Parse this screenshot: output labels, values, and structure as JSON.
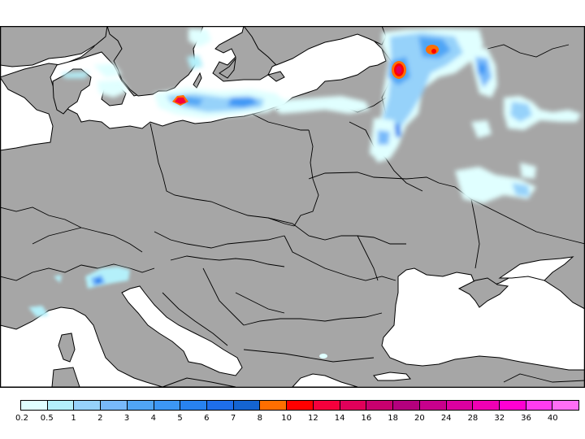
{
  "map": {
    "type": "precipitation-map",
    "region": "Central and Eastern Europe",
    "land_color": "#a6a6a6",
    "water_color": "#ffffff",
    "border_color": "#000000",
    "visible_water_bodies": [
      "North Sea",
      "Baltic Sea",
      "Gulf of Finland",
      "Adriatic Sea",
      "Tyrrhenian Sea",
      "Black Sea",
      "Sea of Azov",
      "Aegean Sea"
    ],
    "precip_features": [
      {
        "location": "Southern Baltic (off southern Sweden)",
        "max_class": "10-12"
      },
      {
        "location": "Baltic Sea band east to Lithuania coast",
        "max_class": "5-6"
      },
      {
        "location": "Western Russia near Pskov",
        "max_class": "12-14"
      },
      {
        "location": "Near Lake Ilmen",
        "max_class": "8-10"
      },
      {
        "location": "Western Russia / Belarus / Ukraine-Russia border",
        "max_class": "4-5"
      },
      {
        "location": "Alps (northern Italy/Switzerland)",
        "max_class": "5-6"
      },
      {
        "location": "Ligurian coast",
        "max_class": "1-2"
      }
    ]
  },
  "chart_data": {
    "type": "heatmap",
    "title": "",
    "legend": {
      "position": "bottom",
      "tick_labels": [
        "0.2",
        "0.5",
        "1",
        "2",
        "3",
        "4",
        "5",
        "6",
        "7",
        "8",
        "10",
        "12",
        "14",
        "16",
        "18",
        "20",
        "24",
        "28",
        "32",
        "36",
        "40"
      ],
      "colors": [
        "#e0ffff",
        "#b4f0fa",
        "#96d2fa",
        "#78b9fa",
        "#50a5f5",
        "#3c97f5",
        "#2882f0",
        "#1e6eeb",
        "#1464d2",
        "#ff6e00",
        "#ff0000",
        "#f5003c",
        "#e1005a",
        "#c8006e",
        "#b4007d",
        "#c8008c",
        "#dc00a0",
        "#f000b4",
        "#ff00d2",
        "#ff3cf0",
        "#ff6ef5"
      ]
    }
  },
  "colorbar": {
    "labels": [
      "0.2",
      "0.5",
      "1",
      "2",
      "3",
      "4",
      "5",
      "6",
      "7",
      "8",
      "10",
      "12",
      "14",
      "16",
      "18",
      "20",
      "24",
      "28",
      "32",
      "36",
      "40"
    ],
    "colors": [
      "#e0ffff",
      "#b4f0fa",
      "#96d2fa",
      "#78b9fa",
      "#50a5f5",
      "#3c97f5",
      "#2882f0",
      "#1e6eeb",
      "#1464d2",
      "#ff6e00",
      "#ff0000",
      "#f5003c",
      "#e1005a",
      "#c8006e",
      "#b4007d",
      "#c8008c",
      "#dc00a0",
      "#f000b4",
      "#ff00d2",
      "#ff3cf0",
      "#ff6ef5"
    ]
  }
}
